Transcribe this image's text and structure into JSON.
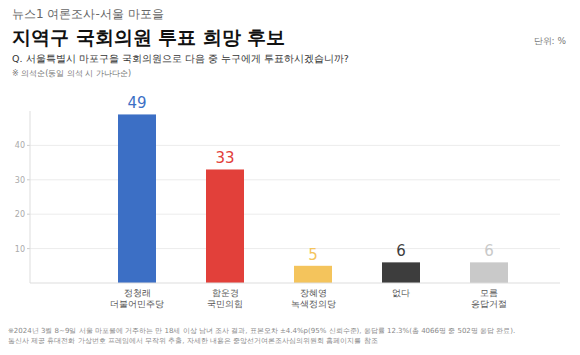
{
  "chart_data": {
    "type": "bar",
    "subtitle": "뉴스1 여론조사-서울 마포을",
    "title": "지역구 국회의원 투표 희망 후보",
    "unit_label": "단위: %",
    "question": "Q. 서울특별시 마포구을 국회의원으로 다음 중 누구에게 투표하시겠습니까?",
    "note": "※ 의석순(동일 의석 시 가나다순)",
    "categories": [
      "정청래\n더불어민주당",
      "함운경\n국민의힘",
      "장혜영\n녹색정의당",
      "없다",
      "모름\n응답거절"
    ],
    "values": [
      49,
      33,
      5,
      6,
      6
    ],
    "colors": [
      "#3c6fc5",
      "#e2403a",
      "#f4c45c",
      "#3d3d3d",
      "#c9c9c9"
    ],
    "ylim": [
      0,
      50
    ],
    "yticks": [
      10,
      20,
      30,
      40
    ],
    "grid": true,
    "data_labels": true,
    "footnotes": [
      "※2024년 3월 8~9일 서울 마포을에 거주하는 만 18세 이상 남녀 조사 결과, 표본오차 ±4.4%p(95% 신뢰수준), 응답률 12.3%(총 4066명 중 502명 응답 완료).",
      "통신사 제공 휴대전화 가상번호 프레임에서 무작위 추출, 자세한 내용은 중앙선거여론조사심의위원회 홈페이지를 참조"
    ]
  }
}
